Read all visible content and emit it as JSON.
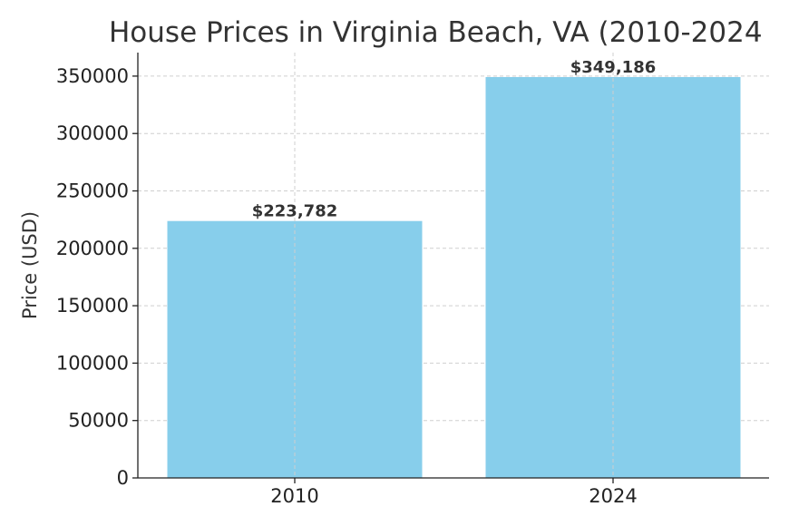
{
  "chart_data": {
    "type": "bar",
    "title": "House Prices in Virginia Beach, VA (2010-2024",
    "xlabel": "",
    "ylabel": "Price (USD)",
    "categories": [
      "2010",
      "2024"
    ],
    "values": [
      223782,
      349186
    ],
    "value_labels": [
      "$223,782",
      "$349,186"
    ],
    "ylim": [
      0,
      350000
    ],
    "y_ticks": [
      0,
      50000,
      100000,
      150000,
      200000,
      250000,
      300000,
      350000
    ],
    "y_tick_labels": [
      "0",
      "50000",
      "100000",
      "150000",
      "200000",
      "250000",
      "300000",
      "350000"
    ],
    "grid": true,
    "legend": false,
    "bar_color": "#87ceeb"
  }
}
